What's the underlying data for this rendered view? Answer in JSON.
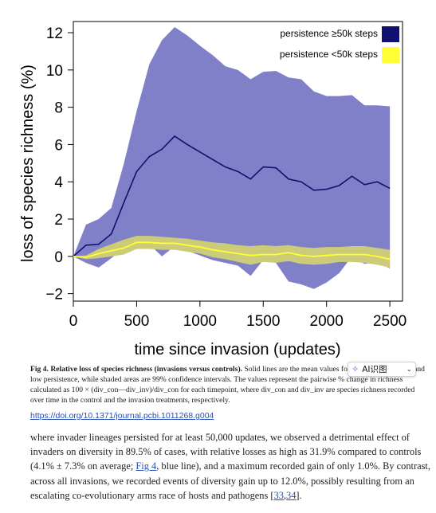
{
  "chart_data": {
    "type": "line",
    "title": "",
    "xlabel": "time since invasion (updates)",
    "ylabel": "loss of species richness (%)",
    "xlim": [
      0,
      2600
    ],
    "ylim": [
      -2.4,
      12.6
    ],
    "xticks": [
      0,
      500,
      1000,
      1500,
      2000,
      2500
    ],
    "yticks": [
      -2,
      0,
      2,
      4,
      6,
      8,
      10,
      12
    ],
    "grid": false,
    "legend_position": "top-right",
    "x": [
      0,
      100,
      200,
      300,
      400,
      500,
      600,
      700,
      800,
      900,
      1000,
      1100,
      1200,
      1300,
      1400,
      1500,
      1600,
      1700,
      1800,
      1900,
      2000,
      2100,
      2200,
      2300,
      2400,
      2500
    ],
    "series": [
      {
        "name": "persistence ≥50k steps",
        "color": "#10106e",
        "band_color": "#8080c8",
        "values": [
          0,
          0.6,
          0.65,
          1.2,
          2.9,
          4.55,
          5.35,
          5.75,
          6.45,
          6.0,
          5.6,
          5.2,
          4.8,
          4.55,
          4.15,
          4.8,
          4.75,
          4.15,
          4.0,
          3.55,
          3.6,
          3.8,
          4.3,
          3.85,
          4.0,
          3.65
        ],
        "upper": [
          0,
          1.7,
          2.0,
          2.6,
          5.0,
          7.8,
          10.3,
          11.6,
          12.3,
          11.85,
          11.3,
          10.8,
          10.2,
          10.0,
          9.5,
          9.9,
          9.95,
          9.6,
          9.5,
          8.85,
          8.6,
          8.6,
          8.65,
          8.1,
          8.1,
          8.05
        ],
        "lower": [
          0,
          -0.35,
          -0.6,
          -0.1,
          0.45,
          1.05,
          0.65,
          0.0,
          0.55,
          0.3,
          0.05,
          -0.2,
          -0.35,
          -0.5,
          -1.05,
          -0.2,
          -0.35,
          -1.35,
          -1.5,
          -1.75,
          -1.4,
          -0.9,
          0.0,
          -0.4,
          -0.3,
          -0.65
        ]
      },
      {
        "name": "persistence <50k steps",
        "color": "#ffff33",
        "band_color": "#cbcb7a",
        "values": [
          0,
          -0.05,
          0.15,
          0.3,
          0.45,
          0.75,
          0.75,
          0.7,
          0.7,
          0.6,
          0.5,
          0.35,
          0.25,
          0.15,
          0.05,
          0.1,
          0.1,
          0.2,
          0.05,
          0.0,
          0.05,
          0.1,
          0.1,
          0.1,
          0.0,
          -0.15
        ],
        "upper": [
          0,
          0.05,
          0.4,
          0.65,
          0.9,
          1.1,
          1.1,
          1.05,
          1.0,
          0.95,
          0.85,
          0.75,
          0.7,
          0.6,
          0.55,
          0.6,
          0.55,
          0.6,
          0.5,
          0.45,
          0.5,
          0.5,
          0.55,
          0.55,
          0.45,
          0.35
        ],
        "lower": [
          0,
          -0.15,
          -0.1,
          0.0,
          0.1,
          0.4,
          0.4,
          0.35,
          0.35,
          0.25,
          0.15,
          -0.05,
          -0.15,
          -0.3,
          -0.45,
          -0.3,
          -0.35,
          -0.25,
          -0.4,
          -0.45,
          -0.4,
          -0.3,
          -0.3,
          -0.35,
          -0.45,
          -0.6
        ]
      }
    ]
  },
  "caption": {
    "label": "Fig 4. Relative loss of species richness (invasions versus controls).",
    "text_1": " Solid lines are the mean values for invasions with high and low persistence, while shaded areas are 99% confidence intervals. The values represent the pairwise % change in richness calculated as 100 × (div_con—div_inv)/div_con for each timepoint, where div_con and div_inv are species richness recorded over time in the control and the invasion treatments, respectively."
  },
  "doi": "https://doi.org/10.1371/journal.pcbi.1011268.g004",
  "ai_widget": {
    "label": "AI识图"
  },
  "body": {
    "t1": "where invader lineages persisted for at least 50,000 updates, we observed a detrimental effect of invaders on diversity in 89.5% of cases, with relative losses as high as 31.9% compared to controls (4.1% ± 7.3% on average; ",
    "link_fig": "Fig 4",
    "t2": ", blue line), and a maximum recorded gain of only 1.0%. By contrast, across all invasions, we recorded events of diversity gain up to 12.0%, possibly resulting from an escalating co-evolutionary arms race of hosts and pathogens [",
    "link_ref1": "33",
    "sep": ",",
    "link_ref2": "34",
    "t3": "]."
  }
}
